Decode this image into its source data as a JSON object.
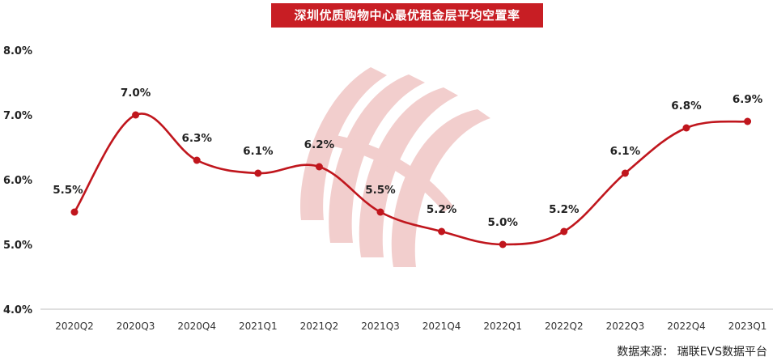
{
  "header": {
    "title": "深圳优质购物中心最优租金层平均空置率"
  },
  "footer": {
    "source": "数据来源： 瑞联EVS数据平台"
  },
  "colors": {
    "title_bg": "#c81e24",
    "line": "#c0161d",
    "watermark": "#e8a7a5"
  },
  "icons": {
    "watermark": "ruilian-logo-watermark"
  },
  "chart_data": {
    "type": "line",
    "title": "深圳优质购物中心最优租金层平均空置率",
    "categories": [
      "2020Q2",
      "2020Q3",
      "2020Q4",
      "2021Q1",
      "2021Q2",
      "2021Q3",
      "2021Q4",
      "2022Q1",
      "2022Q2",
      "2022Q3",
      "2022Q4",
      "2023Q1"
    ],
    "values": [
      5.5,
      7.0,
      6.3,
      6.1,
      6.2,
      5.5,
      5.2,
      5.0,
      5.2,
      6.1,
      6.8,
      6.9
    ],
    "data_labels": [
      "5.5%",
      "7.0%",
      "6.3%",
      "6.1%",
      "6.2%",
      "5.5%",
      "5.2%",
      "5.0%",
      "5.2%",
      "6.1%",
      "6.8%",
      "6.9%"
    ],
    "ylim": [
      4.0,
      8.0
    ],
    "yticks": [
      4.0,
      5.0,
      6.0,
      7.0,
      8.0
    ],
    "ytick_labels": [
      "4.0%",
      "5.0%",
      "6.0%",
      "7.0%",
      "8.0%"
    ],
    "xlabel": "",
    "ylabel": "",
    "grid": false,
    "legend": "none",
    "smooth": true
  }
}
